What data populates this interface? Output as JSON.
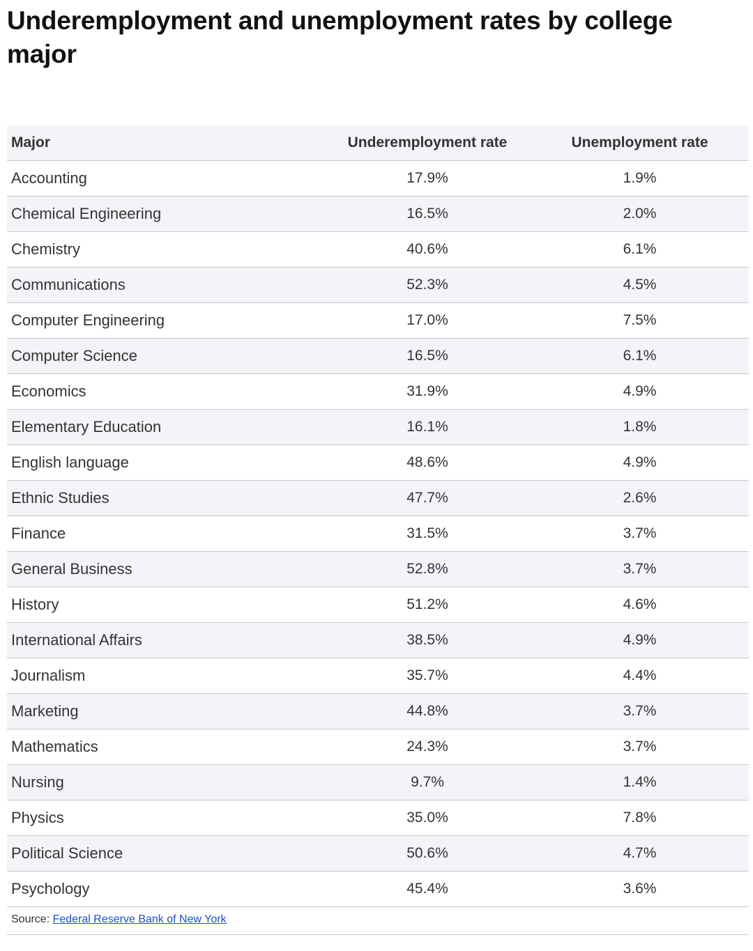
{
  "title": "Underemployment and unemployment rates by college major",
  "chart_data": {
    "type": "table",
    "title": "Underemployment and unemployment rates by college major",
    "columns": [
      "Major",
      "Underemployment rate",
      "Unemployment rate"
    ],
    "rows": [
      [
        "Accounting",
        "17.9%",
        "1.9%"
      ],
      [
        "Chemical Engineering",
        "16.5%",
        "2.0%"
      ],
      [
        "Chemistry",
        "40.6%",
        "6.1%"
      ],
      [
        "Communications",
        "52.3%",
        "4.5%"
      ],
      [
        "Computer Engineering",
        "17.0%",
        "7.5%"
      ],
      [
        "Computer Science",
        "16.5%",
        "6.1%"
      ],
      [
        "Economics",
        "31.9%",
        "4.9%"
      ],
      [
        "Elementary Education",
        "16.1%",
        "1.8%"
      ],
      [
        "English language",
        "48.6%",
        "4.9%"
      ],
      [
        "Ethnic Studies",
        "47.7%",
        "2.6%"
      ],
      [
        "Finance",
        "31.5%",
        "3.7%"
      ],
      [
        "General Business",
        "52.8%",
        "3.7%"
      ],
      [
        "History",
        "51.2%",
        "4.6%"
      ],
      [
        "International Affairs",
        "38.5%",
        "4.9%"
      ],
      [
        "Journalism",
        "35.7%",
        "4.4%"
      ],
      [
        "Marketing",
        "44.8%",
        "3.7%"
      ],
      [
        "Mathematics",
        "24.3%",
        "3.7%"
      ],
      [
        "Nursing",
        "9.7%",
        "1.4%"
      ],
      [
        "Physics",
        "35.0%",
        "7.8%"
      ],
      [
        "Political Science",
        "50.6%",
        "4.7%"
      ],
      [
        "Psychology",
        "45.4%",
        "3.6%"
      ]
    ]
  },
  "source": {
    "label": "Source:",
    "link_text": "Federal Reserve Bank of New York"
  },
  "colors": {
    "header_bg": "#f3f4f8",
    "stripe_bg": "#f3f4f8",
    "rule": "#c9c9c9",
    "link": "#1a4fd6"
  }
}
